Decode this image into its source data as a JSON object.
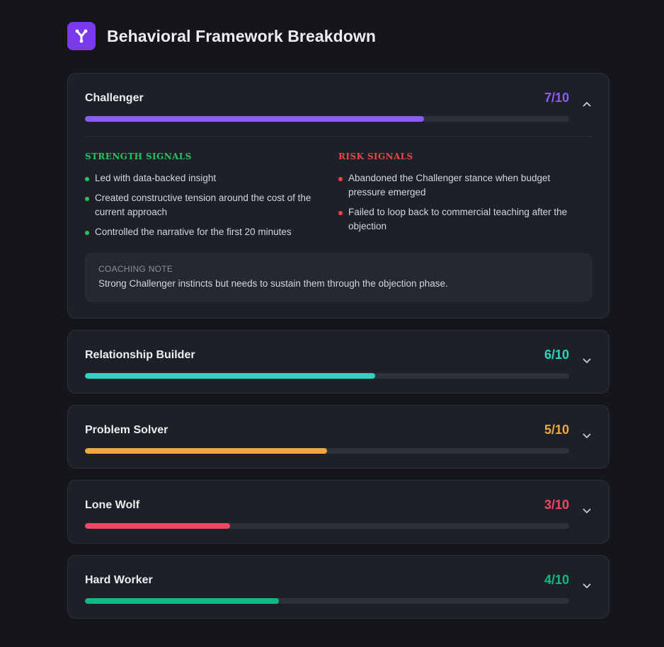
{
  "header": {
    "title": "Behavioral Framework Breakdown",
    "logo_icon": "fork-icon",
    "logo_color": "#7c3aed"
  },
  "frameworks": [
    {
      "name": "Challenger",
      "score_label": "7/10",
      "score": 0.7,
      "color": "#8b5cf6",
      "expanded": true,
      "chevron_icon": "chevron-up-icon",
      "strength_heading": "STRENGTH SIGNALS",
      "strengths": [
        "Led with data-backed insight",
        "Created constructive tension around the cost of the current approach",
        "Controlled the narrative for the first 20 minutes"
      ],
      "risk_heading": "RISK SIGNALS",
      "risks": [
        "Abandoned the Challenger stance when budget pressure emerged",
        "Failed to loop back to commercial teaching after the objection"
      ],
      "coaching_label": "COACHING NOTE",
      "coaching_text": "Strong Challenger instincts but needs to sustain them through the objection phase."
    },
    {
      "name": "Relationship Builder",
      "score_label": "6/10",
      "score": 0.6,
      "color": "#2dd4bf",
      "expanded": false,
      "chevron_icon": "chevron-down-icon"
    },
    {
      "name": "Problem Solver",
      "score_label": "5/10",
      "score": 0.5,
      "color": "#f0a83a",
      "expanded": false,
      "chevron_icon": "chevron-down-icon"
    },
    {
      "name": "Lone Wolf",
      "score_label": "3/10",
      "score": 0.3,
      "color": "#ef4766",
      "expanded": false,
      "chevron_icon": "chevron-down-icon"
    },
    {
      "name": "Hard Worker",
      "score_label": "4/10",
      "score": 0.4,
      "color": "#10b981",
      "expanded": false,
      "chevron_icon": "chevron-down-icon"
    }
  ],
  "colors": {
    "background": "#14161b",
    "card": "#1d2027",
    "strength": "#22c55e",
    "risk": "#ef4444"
  }
}
